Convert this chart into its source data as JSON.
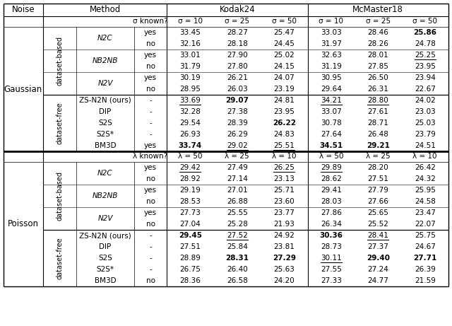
{
  "gaussian_rows": [
    {
      "method": "N2C",
      "cat": "based",
      "known": "yes",
      "k24": [
        "33.45",
        "28.27",
        "25.47"
      ],
      "mc18": [
        "33.03",
        "28.46",
        "25.86"
      ],
      "bold": [
        false,
        false,
        false,
        false,
        false,
        true
      ],
      "underline": [
        false,
        false,
        false,
        false,
        false,
        false
      ]
    },
    {
      "method": "N2C",
      "cat": "based",
      "known": "no",
      "k24": [
        "32.16",
        "28.18",
        "24.45"
      ],
      "mc18": [
        "31.97",
        "28.26",
        "24.78"
      ],
      "bold": [
        false,
        false,
        false,
        false,
        false,
        false
      ],
      "underline": [
        false,
        false,
        false,
        false,
        false,
        false
      ]
    },
    {
      "method": "NB2NB",
      "cat": "based",
      "known": "yes",
      "k24": [
        "33.01",
        "27.90",
        "25.02"
      ],
      "mc18": [
        "32.63",
        "28.01",
        "25.25"
      ],
      "bold": [
        false,
        false,
        false,
        false,
        false,
        false
      ],
      "underline": [
        false,
        false,
        false,
        false,
        false,
        true
      ]
    },
    {
      "method": "NB2NB",
      "cat": "based",
      "known": "no",
      "k24": [
        "31.79",
        "27.80",
        "24.15"
      ],
      "mc18": [
        "31.19",
        "27.85",
        "23.95"
      ],
      "bold": [
        false,
        false,
        false,
        false,
        false,
        false
      ],
      "underline": [
        false,
        false,
        false,
        false,
        false,
        false
      ]
    },
    {
      "method": "N2V",
      "cat": "based",
      "known": "yes",
      "k24": [
        "30.19",
        "26.21",
        "24.07"
      ],
      "mc18": [
        "30.95",
        "26.50",
        "23.94"
      ],
      "bold": [
        false,
        false,
        false,
        false,
        false,
        false
      ],
      "underline": [
        false,
        false,
        false,
        false,
        false,
        false
      ]
    },
    {
      "method": "N2V",
      "cat": "based",
      "known": "no",
      "k24": [
        "28.95",
        "26.03",
        "23.19"
      ],
      "mc18": [
        "29.64",
        "26.31",
        "22.67"
      ],
      "bold": [
        false,
        false,
        false,
        false,
        false,
        false
      ],
      "underline": [
        false,
        false,
        false,
        false,
        false,
        false
      ]
    },
    {
      "method": "ZS-N2N (ours)",
      "cat": "free",
      "known": "-",
      "k24": [
        "33.69",
        "29.07",
        "24.81"
      ],
      "mc18": [
        "34.21",
        "28.80",
        "24.02"
      ],
      "bold": [
        false,
        true,
        false,
        false,
        false,
        false
      ],
      "underline": [
        true,
        false,
        false,
        true,
        true,
        false
      ]
    },
    {
      "method": "DIP",
      "cat": "free",
      "known": "-",
      "k24": [
        "32.28",
        "27.38",
        "23.95"
      ],
      "mc18": [
        "33.07",
        "27.61",
        "23.03"
      ],
      "bold": [
        false,
        false,
        false,
        false,
        false,
        false
      ],
      "underline": [
        false,
        false,
        false,
        false,
        false,
        false
      ]
    },
    {
      "method": "S2S",
      "cat": "free",
      "known": "-",
      "k24": [
        "29.54",
        "28.39",
        "26.22"
      ],
      "mc18": [
        "30.78",
        "28.71",
        "25.03"
      ],
      "bold": [
        false,
        false,
        true,
        false,
        false,
        false
      ],
      "underline": [
        false,
        false,
        false,
        false,
        false,
        false
      ]
    },
    {
      "method": "S2S*",
      "cat": "free",
      "known": "-",
      "k24": [
        "26.93",
        "26.29",
        "24.83"
      ],
      "mc18": [
        "27.64",
        "26.48",
        "23.79"
      ],
      "bold": [
        false,
        false,
        false,
        false,
        false,
        false
      ],
      "underline": [
        false,
        false,
        false,
        false,
        false,
        false
      ]
    },
    {
      "method": "BM3D",
      "cat": "free",
      "known": "yes",
      "k24": [
        "33.74",
        "29.02",
        "25.51"
      ],
      "mc18": [
        "34.51",
        "29.21",
        "24.51"
      ],
      "bold": [
        true,
        false,
        false,
        true,
        true,
        false
      ],
      "underline": [
        false,
        true,
        true,
        false,
        false,
        false
      ]
    }
  ],
  "poisson_rows": [
    {
      "method": "N2C",
      "cat": "based",
      "known": "yes",
      "k24": [
        "29.42",
        "27.49",
        "26.25"
      ],
      "mc18": [
        "29.89",
        "28.20",
        "26.42"
      ],
      "bold": [
        false,
        false,
        false,
        false,
        false,
        false
      ],
      "underline": [
        true,
        false,
        true,
        true,
        false,
        false
      ]
    },
    {
      "method": "N2C",
      "cat": "based",
      "known": "no",
      "k24": [
        "28.92",
        "27.14",
        "23.13"
      ],
      "mc18": [
        "28.62",
        "27.51",
        "24.32"
      ],
      "bold": [
        false,
        false,
        false,
        false,
        false,
        false
      ],
      "underline": [
        false,
        false,
        false,
        false,
        false,
        false
      ]
    },
    {
      "method": "NB2NB",
      "cat": "based",
      "known": "yes",
      "k24": [
        "29.19",
        "27.01",
        "25.71"
      ],
      "mc18": [
        "29.41",
        "27.79",
        "25.95"
      ],
      "bold": [
        false,
        false,
        false,
        false,
        false,
        false
      ],
      "underline": [
        false,
        false,
        false,
        false,
        false,
        false
      ]
    },
    {
      "method": "NB2NB",
      "cat": "based",
      "known": "no",
      "k24": [
        "28.53",
        "26.88",
        "23.60"
      ],
      "mc18": [
        "28.03",
        "27.66",
        "24.58"
      ],
      "bold": [
        false,
        false,
        false,
        false,
        false,
        false
      ],
      "underline": [
        false,
        false,
        false,
        false,
        false,
        false
      ]
    },
    {
      "method": "N2V",
      "cat": "based",
      "known": "yes",
      "k24": [
        "27.73",
        "25.55",
        "23.77"
      ],
      "mc18": [
        "27.86",
        "25.65",
        "23.47"
      ],
      "bold": [
        false,
        false,
        false,
        false,
        false,
        false
      ],
      "underline": [
        false,
        false,
        false,
        false,
        false,
        false
      ]
    },
    {
      "method": "N2V",
      "cat": "based",
      "known": "no",
      "k24": [
        "27.04",
        "25.28",
        "21.93"
      ],
      "mc18": [
        "26.34",
        "25.52",
        "22.07"
      ],
      "bold": [
        false,
        false,
        false,
        false,
        false,
        false
      ],
      "underline": [
        false,
        false,
        false,
        false,
        false,
        false
      ]
    },
    {
      "method": "ZS-N2N (ours)",
      "cat": "free",
      "known": "-",
      "k24": [
        "29.45",
        "27.52",
        "24.92"
      ],
      "mc18": [
        "30.36",
        "28.41",
        "25.75"
      ],
      "bold": [
        true,
        false,
        false,
        true,
        false,
        false
      ],
      "underline": [
        false,
        true,
        false,
        false,
        true,
        false
      ]
    },
    {
      "method": "DIP",
      "cat": "free",
      "known": "-",
      "k24": [
        "27.51",
        "25.84",
        "23.81"
      ],
      "mc18": [
        "28.73",
        "27.37",
        "24.67"
      ],
      "bold": [
        false,
        false,
        false,
        false,
        false,
        false
      ],
      "underline": [
        false,
        false,
        false,
        false,
        false,
        false
      ]
    },
    {
      "method": "S2S",
      "cat": "free",
      "known": "-",
      "k24": [
        "28.89",
        "28.31",
        "27.29"
      ],
      "mc18": [
        "30.11",
        "29.40",
        "27.71"
      ],
      "bold": [
        false,
        true,
        true,
        false,
        true,
        true
      ],
      "underline": [
        false,
        false,
        false,
        true,
        false,
        false
      ]
    },
    {
      "method": "S2S*",
      "cat": "free",
      "known": "-",
      "k24": [
        "26.75",
        "26.40",
        "25.63"
      ],
      "mc18": [
        "27.55",
        "27.24",
        "26.39"
      ],
      "bold": [
        false,
        false,
        false,
        false,
        false,
        false
      ],
      "underline": [
        false,
        false,
        false,
        false,
        false,
        false
      ]
    },
    {
      "method": "BM3D",
      "cat": "free",
      "known": "no",
      "k24": [
        "28.36",
        "26.58",
        "24.20"
      ],
      "mc18": [
        "27.33",
        "24.77",
        "21.59"
      ],
      "bold": [
        false,
        false,
        false,
        false,
        false,
        false
      ],
      "underline": [
        false,
        false,
        false,
        false,
        false,
        false
      ]
    }
  ],
  "italic_methods": [
    "N2C",
    "NB2NB",
    "N2V"
  ],
  "bg_color": "#ffffff"
}
